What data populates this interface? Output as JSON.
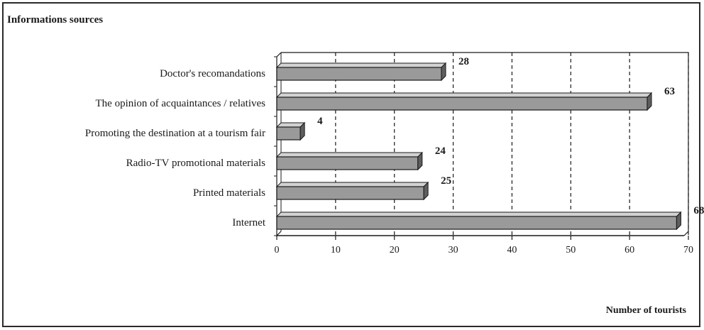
{
  "chart_data": {
    "type": "bar",
    "orientation": "horizontal",
    "title": "Informations sources",
    "xlabel": "Number of tourists",
    "ylabel": "",
    "categories": [
      "Doctor's recomandations",
      "The opinion of acquaintances / relatives",
      "Promoting the destination at a tourism fair",
      "Radio-TV promotional materials",
      "Printed materials",
      "Internet"
    ],
    "values": [
      28,
      63,
      4,
      24,
      25,
      68
    ],
    "data_labels": [
      "28",
      "63",
      "4",
      "24",
      "25",
      "68"
    ],
    "xlim": [
      0,
      70
    ],
    "x_ticks": [
      0,
      10,
      20,
      30,
      40,
      50,
      60,
      70
    ],
    "x_tick_labels": [
      "0",
      "10",
      "20",
      "30",
      "40",
      "50",
      "60",
      "70"
    ],
    "grid": "vertical dashed",
    "legend": "none",
    "bar_style": "3d",
    "colors": {
      "bar_face": "#9a9a9a",
      "bar_top": "#d2d2d2",
      "bar_side": "#5e5e5e",
      "outline": "#1a1a1a"
    }
  }
}
